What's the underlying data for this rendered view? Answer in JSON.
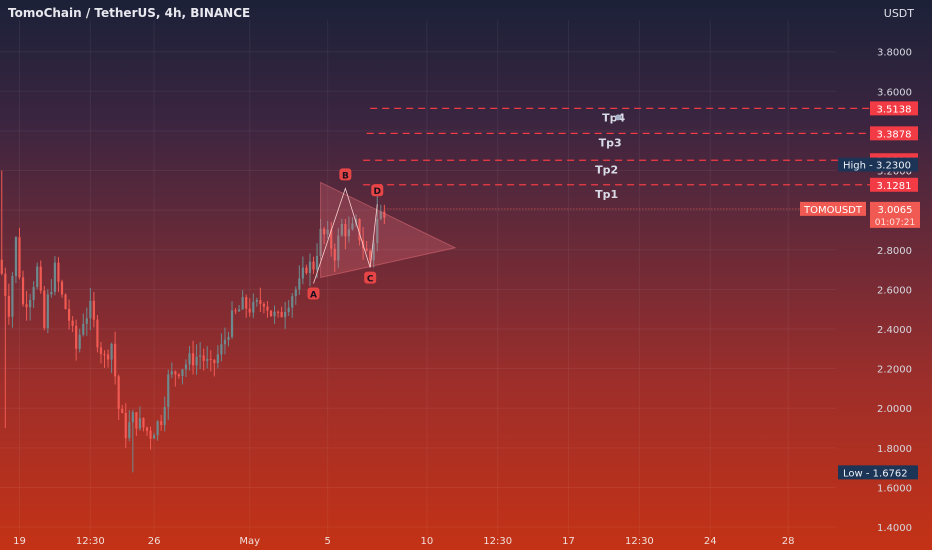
{
  "header": {
    "title": "TomoChain / TetherUS, 4h, BINANCE",
    "currency": "USDT"
  },
  "colors": {
    "up": "#6d8a8e",
    "down": "#f05a52",
    "target_line": "#f23b45",
    "price_badge": "#f05a52",
    "high_low_badge": "#1c3456",
    "pattern_fill": "#e8707a"
  },
  "chart_data": {
    "type": "candlestick",
    "ylim": [
      1.36,
      3.96
    ],
    "y_ticks": [
      {
        "v": 3.8,
        "label": "3.8000"
      },
      {
        "v": 3.6,
        "label": "3.6000"
      },
      {
        "v": 3.4,
        "label": "3.4000"
      },
      {
        "v": 3.2,
        "label": "3.2000"
      },
      {
        "v": 3.0,
        "label": "3.0000"
      },
      {
        "v": 2.8,
        "label": "2.8000"
      },
      {
        "v": 2.6,
        "label": "2.6000"
      },
      {
        "v": 2.4,
        "label": "2.4000"
      },
      {
        "v": 2.2,
        "label": "2.2000"
      },
      {
        "v": 2.0,
        "label": "2.0000"
      },
      {
        "v": 1.8,
        "label": "1.8000"
      },
      {
        "v": 1.6,
        "label": "1.6000"
      },
      {
        "v": 1.4,
        "label": "1.4000"
      }
    ],
    "x_ticks": [
      {
        "i": 5,
        "label": "19"
      },
      {
        "i": 25,
        "label": "12:30"
      },
      {
        "i": 43,
        "label": "26"
      },
      {
        "i": 70,
        "label": "May"
      },
      {
        "i": 92,
        "label": "5"
      },
      {
        "i": 120,
        "label": "10"
      },
      {
        "i": 140,
        "label": "12:30"
      },
      {
        "i": 160,
        "label": "17"
      },
      {
        "i": 180,
        "label": "12:30"
      },
      {
        "i": 200,
        "label": "24"
      },
      {
        "i": 222,
        "label": "28"
      }
    ],
    "bar_count_span": 236,
    "targets": [
      {
        "name": "Tp4",
        "price": 3.5138,
        "badge": "3.5138",
        "from_index": 104
      },
      {
        "name": "Tp3",
        "price": 3.3878,
        "badge": "3.3878",
        "from_index": 103
      },
      {
        "name": "Tp2",
        "price": 3.2519,
        "badge": "3.2519",
        "from_index": 102
      },
      {
        "name": "Tp1",
        "price": 3.1281,
        "badge": "3.1281",
        "from_index": 102
      }
    ],
    "high": {
      "label": "High",
      "value": "3.2300",
      "price": 3.23
    },
    "low": {
      "label": "Low",
      "value": "1.6762",
      "price": 1.6762
    },
    "current": {
      "symbol": "TOMOUSDT",
      "price": 3.0065,
      "value": "3.0065",
      "countdown": "01:07:21"
    },
    "pattern_points": [
      {
        "label": "A",
        "index": 88,
        "price": 2.63
      },
      {
        "label": "B",
        "index": 97,
        "price": 3.11
      },
      {
        "label": "C",
        "index": 104,
        "price": 2.71
      },
      {
        "label": "D",
        "index": 106,
        "price": 3.03
      }
    ],
    "candles": []
  }
}
